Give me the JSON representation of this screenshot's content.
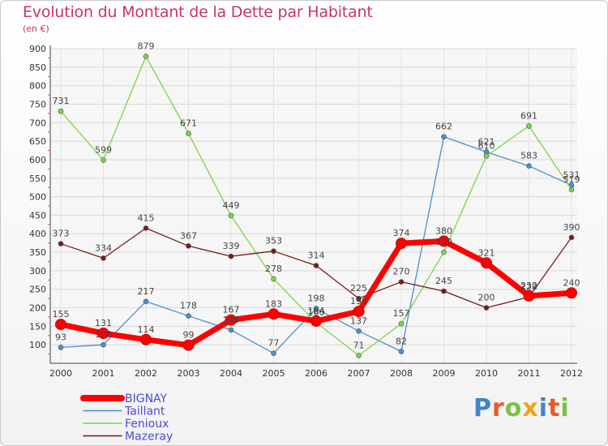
{
  "title": "Evolution du Montant de la Dette par Habitant",
  "subtitle": "(en €)",
  "logo": {
    "text": "Proxiti",
    "letters": [
      {
        "ch": "P",
        "color": "#3e86c8"
      },
      {
        "ch": "r",
        "color": "#e85a2a"
      },
      {
        "ch": "o",
        "color": "#7cc142"
      },
      {
        "ch": "x",
        "color": "#f5a01a"
      },
      {
        "ch": "i",
        "color": "#3e86c8"
      },
      {
        "ch": "t",
        "color": "#e85a2a"
      },
      {
        "ch": "i",
        "color": "#7cc142"
      }
    ]
  },
  "chart_data": {
    "type": "line",
    "x": [
      "2000",
      "2001",
      "2002",
      "2003",
      "2004",
      "2005",
      "2006",
      "2007",
      "2008",
      "2009",
      "2010",
      "2011",
      "2012"
    ],
    "ylim": [
      50,
      900
    ],
    "yticks": [
      100,
      150,
      200,
      250,
      300,
      350,
      400,
      450,
      500,
      550,
      600,
      650,
      700,
      750,
      800,
      850,
      900
    ],
    "grid": true,
    "series": [
      {
        "name": "BIGNAY",
        "color": "#ff0000",
        "values": [
          155,
          131,
          114,
          99,
          167,
          183,
          164,
          190,
          374,
          380,
          321,
          232,
          240
        ],
        "labels": [
          "155",
          "131",
          "114",
          "99",
          "167",
          "183",
          "164",
          "190",
          "374",
          "380",
          "321",
          "232",
          "240"
        ]
      },
      {
        "name": "Taillant",
        "color": "#4a8fd0",
        "values": [
          93,
          100,
          217,
          178,
          140,
          77,
          198,
          137,
          82,
          662,
          621,
          583,
          531
        ],
        "labels": [
          "93",
          "100",
          "217",
          "178",
          "140",
          "77",
          "198",
          "137",
          "82",
          "662",
          "621",
          "583",
          "531"
        ]
      },
      {
        "name": "Fenioux",
        "color": "#7cd34a",
        "values": [
          731,
          599,
          879,
          671,
          449,
          278,
          160,
          71,
          157,
          350,
          610,
          691,
          519
        ],
        "labels": [
          "731",
          "599",
          "879",
          "671",
          "449",
          "278",
          "160",
          "71",
          "157",
          "350",
          "610",
          "691",
          "519"
        ]
      },
      {
        "name": "Mazeray",
        "color": "#7a1a1a",
        "values": [
          373,
          334,
          415,
          367,
          339,
          353,
          314,
          225,
          270,
          245,
          200,
          229,
          390
        ],
        "labels": [
          "373",
          "334",
          "415",
          "367",
          "339",
          "353",
          "314",
          "225",
          "270",
          "245",
          "200",
          "229",
          "390"
        ]
      }
    ]
  }
}
